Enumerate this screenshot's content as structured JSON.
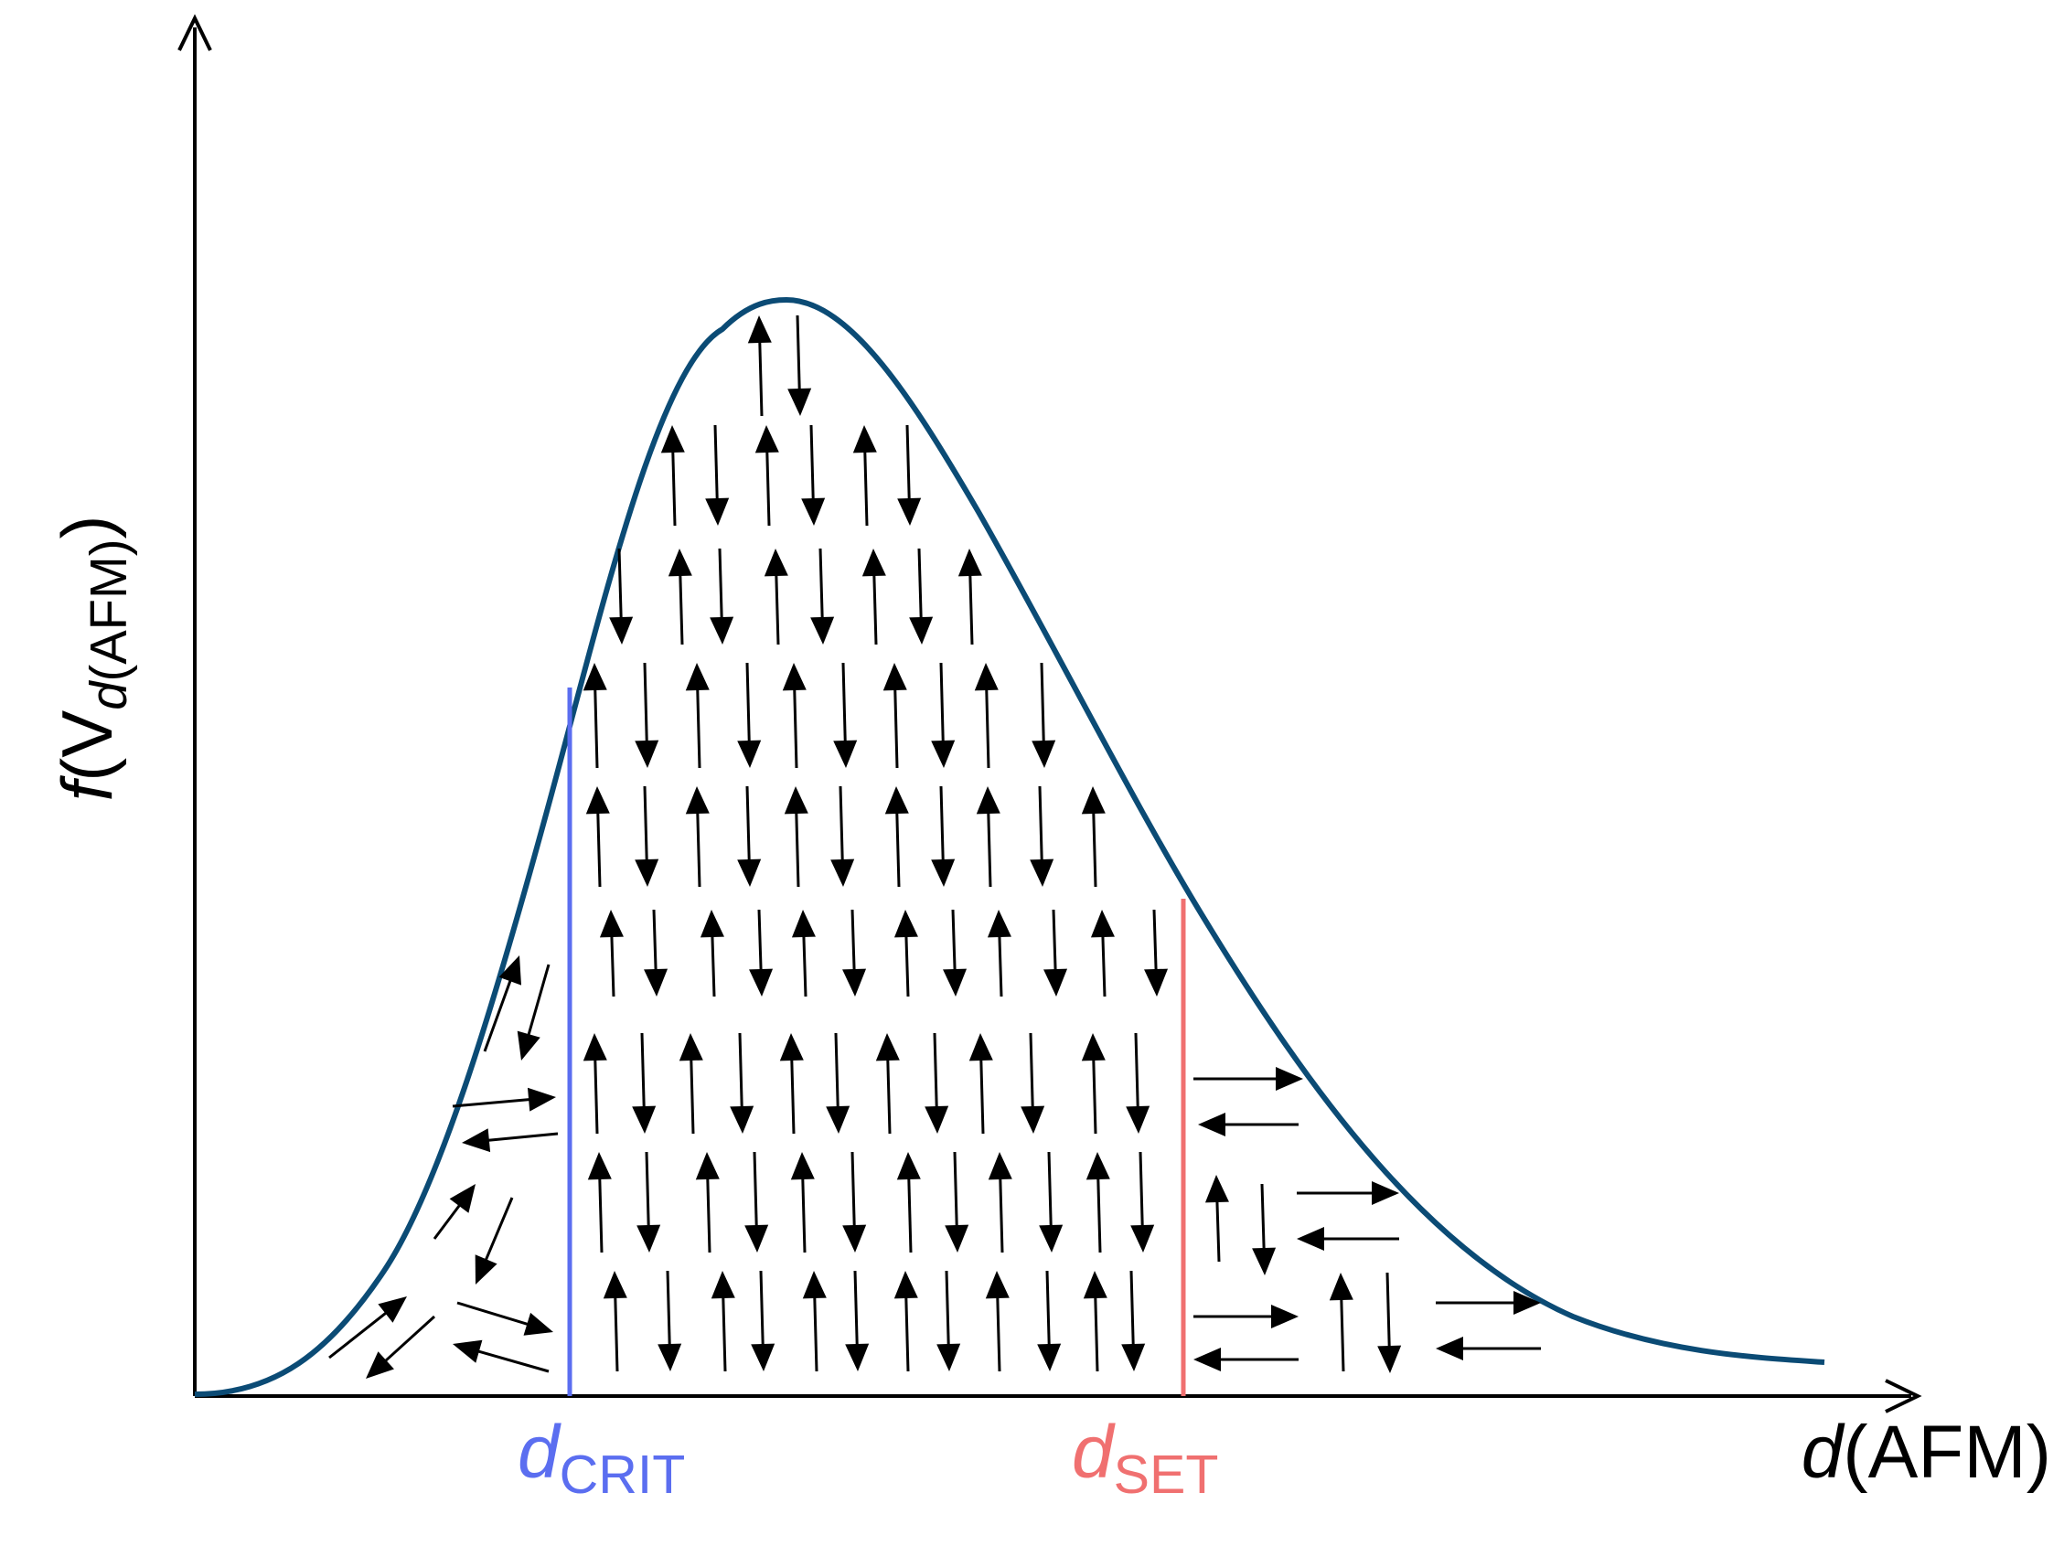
{
  "y_axis": {
    "func": "f",
    "open_paren": "(",
    "v": "V",
    "sub_var": "d",
    "sub_rest": "(AFM)",
    "close_paren": ")"
  },
  "x_axis": {
    "var": "d",
    "rest": "(AFM)"
  },
  "markers": [
    {
      "var": "d",
      "sub": "CRIT",
      "color": "#5b6ef0"
    },
    {
      "var": "d",
      "sub": "SET",
      "color": "#f07070"
    }
  ],
  "colors": {
    "curve": "#0b4b75",
    "axes": "#000000",
    "arrows": "#000000"
  }
}
